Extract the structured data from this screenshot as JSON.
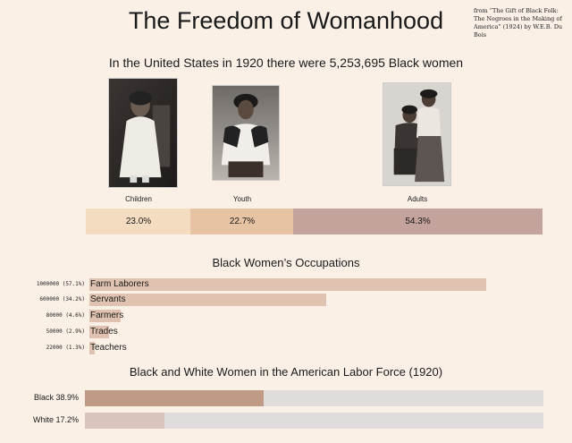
{
  "title": "The Freedom of Womanhood",
  "source": "from “The Gift of Black Folk: The Negroes in the Making of America” (1924) by W.E.B. Du Bois",
  "subtitle": "In the United States in 1920 there were 5,253,695 Black women",
  "photos": [
    {
      "name": "children-photo",
      "label": "Children"
    },
    {
      "name": "youth-photo",
      "label": "Youth"
    },
    {
      "name": "adults-photo",
      "label": "Adults"
    }
  ],
  "colors": {
    "background": "#faf0e6",
    "children": "#f4dcc1",
    "youth": "#e6c3a3",
    "adults": "#c4a39c",
    "occupation": "#dfc3b0",
    "black": "#bf9b86",
    "white": "#d9c3bd",
    "track": "#e0dcdb"
  },
  "chart_data": [
    {
      "type": "bar",
      "orientation": "stacked-horizontal",
      "title": "In the United States in 1920 there were 5,253,695 Black women",
      "categories": [
        "Children",
        "Youth",
        "Adults"
      ],
      "values": [
        23.0,
        22.7,
        54.3
      ],
      "value_labels": [
        "23.0%",
        "22.7%",
        "54.3%"
      ],
      "unit": "%"
    },
    {
      "type": "bar",
      "orientation": "horizontal",
      "title": "Black Women’s Occupations",
      "categories": [
        "Farm Laborers",
        "Servants",
        "Farmers",
        "Trades",
        "Teachers"
      ],
      "values": [
        1000000,
        600000,
        80000,
        50000,
        22000
      ],
      "value_labels": [
        "1000000 (57.1%)",
        "600000 (34.2%)",
        "80000 (4.6%)",
        "50000 (2.9%)",
        "22000 (1.3%)"
      ],
      "percent": [
        57.1,
        34.2,
        4.6,
        2.9,
        1.3
      ]
    },
    {
      "type": "bar",
      "orientation": "horizontal",
      "title": "Black and White Women in the American Labor Force (1920)",
      "categories": [
        "Black",
        "White"
      ],
      "values": [
        38.9,
        17.2
      ],
      "value_labels": [
        "Black 38.9%",
        "White 17.2%"
      ],
      "xlim": [
        0,
        100
      ],
      "unit": "%"
    }
  ]
}
